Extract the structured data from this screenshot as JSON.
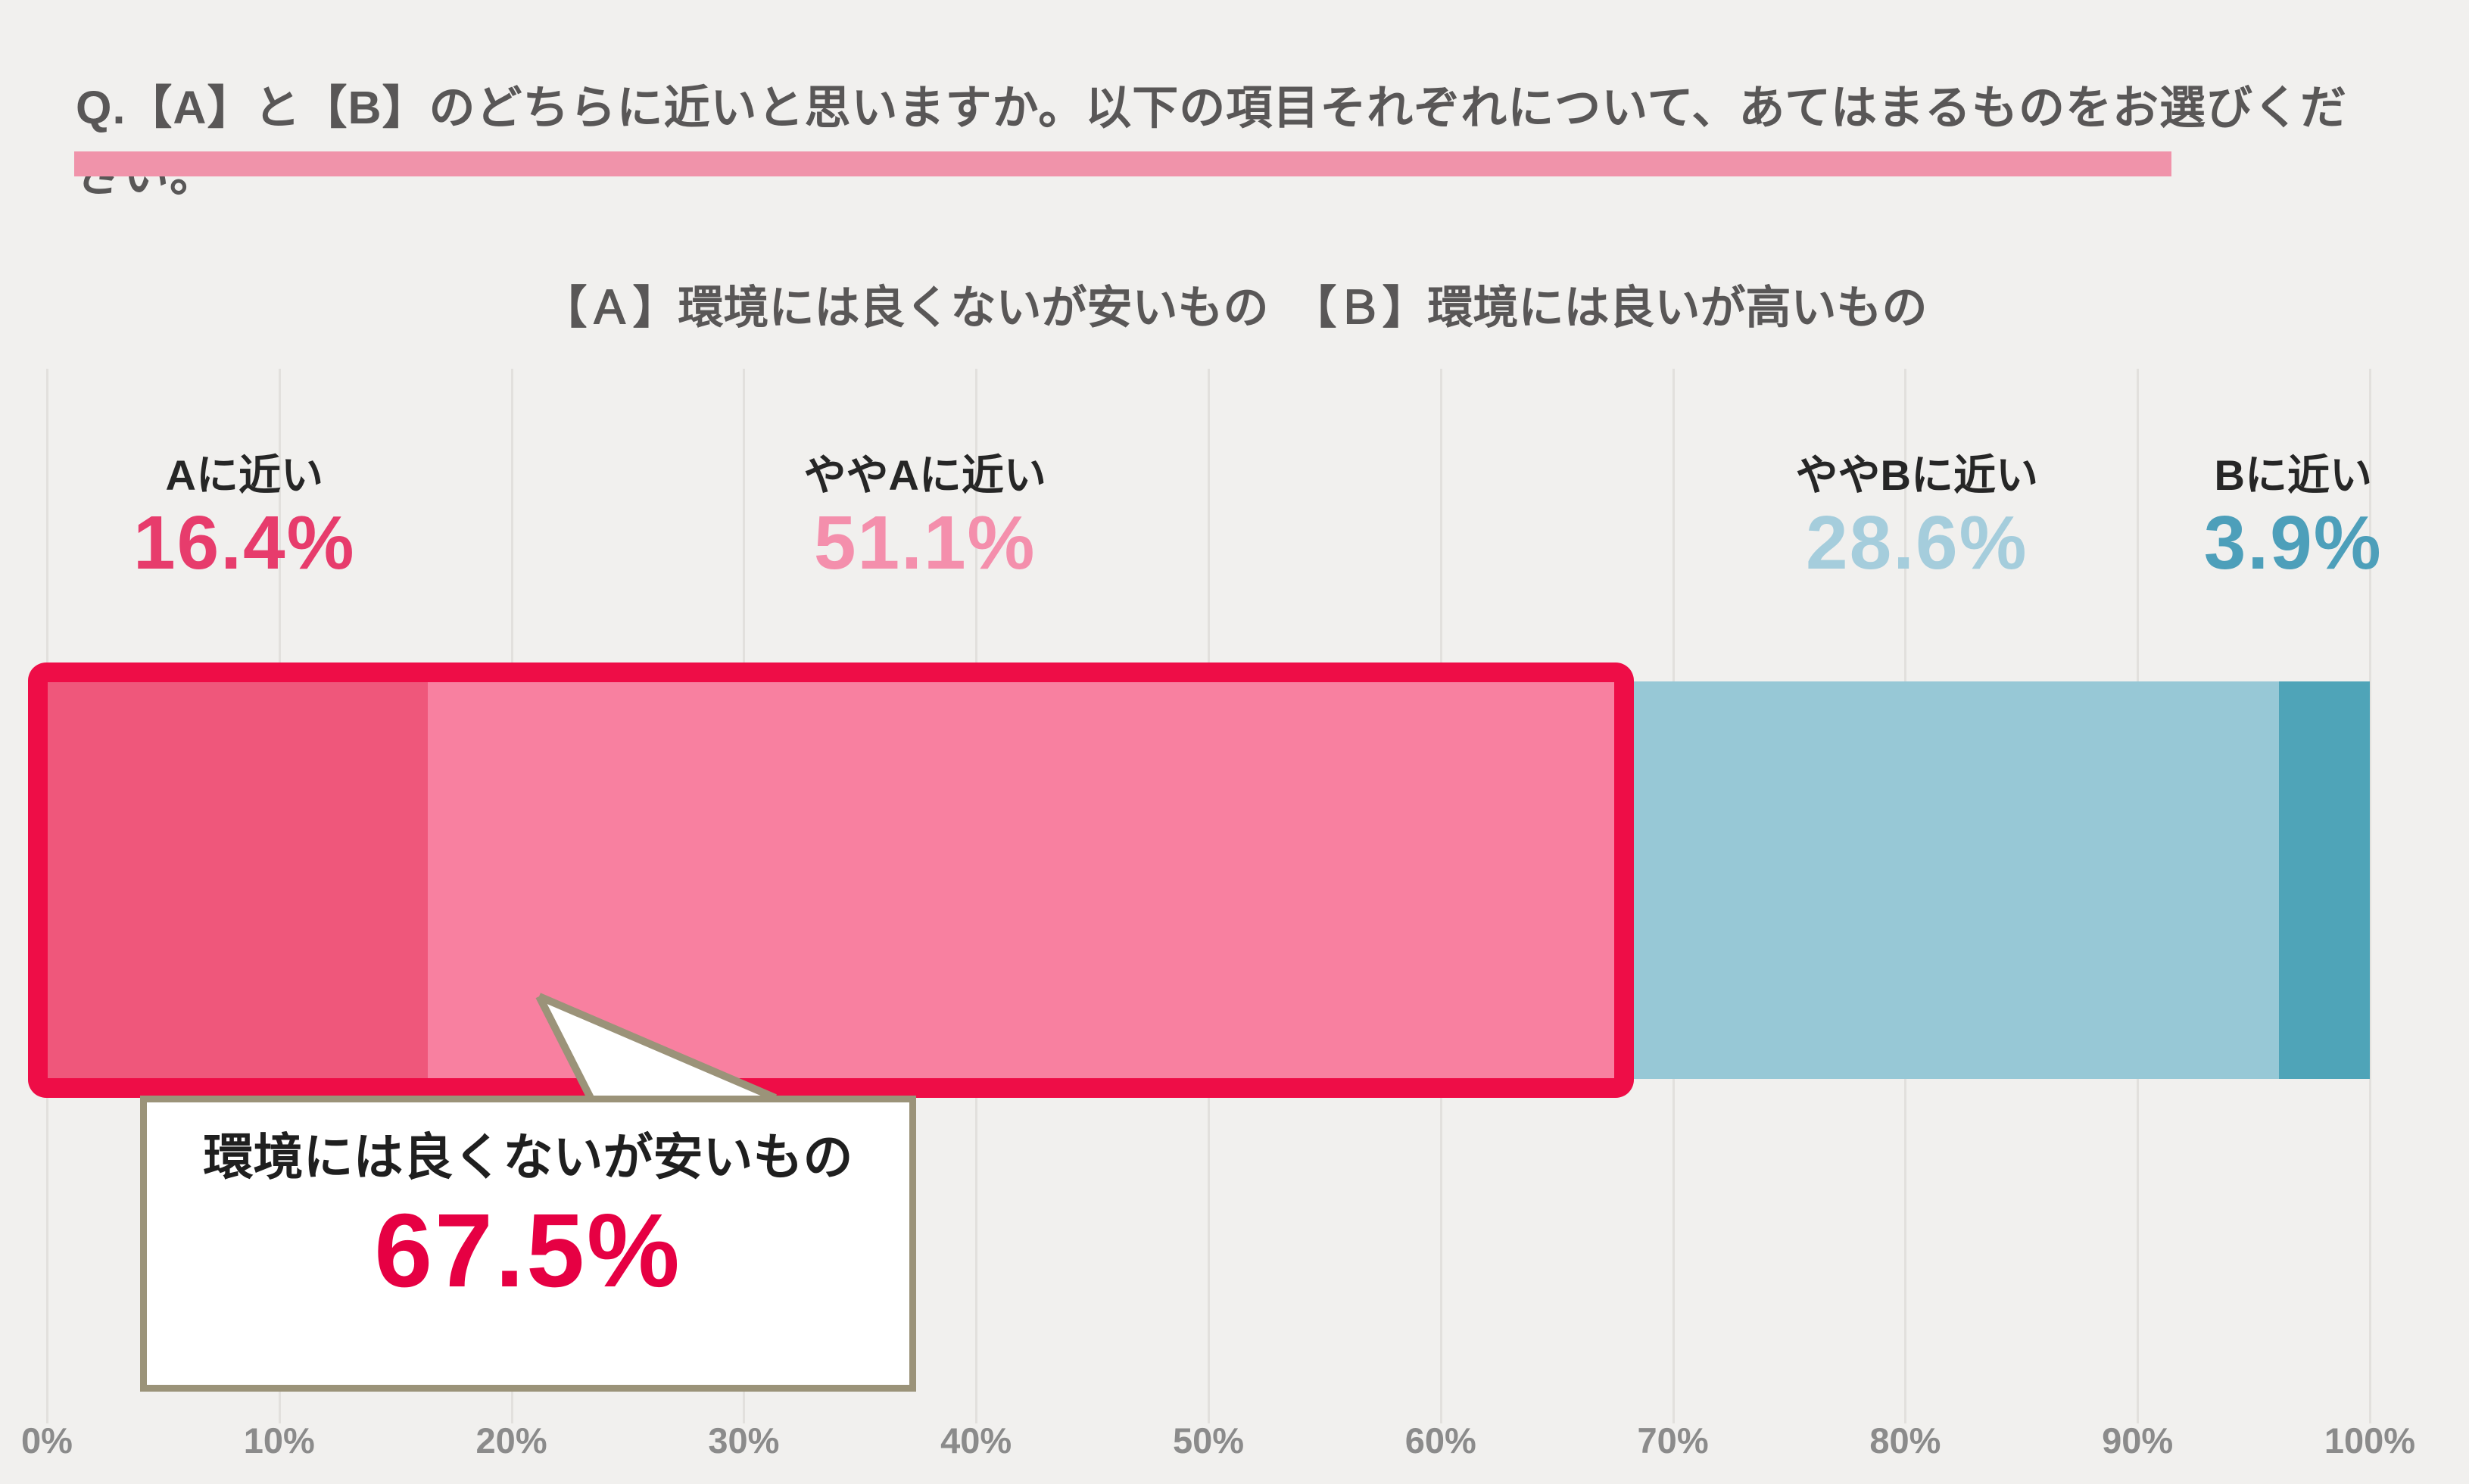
{
  "page": {
    "background": "#f1f0ee",
    "heading_color": "#595757",
    "underline_color": "#f093aa",
    "gridline_color": "#e2e0dd",
    "tick_color": "#8b8b8b"
  },
  "header": {
    "question": "Q.【A】と【B】のどちらに近いと思いますか。以下の項目それぞれについて、あてはまるものをお選びください。"
  },
  "chart_data": {
    "type": "bar",
    "orientation": "horizontal-stacked",
    "title": "【Ａ】環境には良くないが安いもの　【Ｂ】環境には良いが高いもの",
    "categories": [
      "Aに近い",
      "ややAに近い",
      "ややBに近い",
      "Bに近い"
    ],
    "values": [
      16.4,
      51.1,
      28.6,
      3.9
    ],
    "value_labels": [
      "16.4%",
      "51.1%",
      "28.6%",
      "3.9%"
    ],
    "segment_colors": [
      "#ef577b",
      "#f880a0",
      "#97c8d6",
      "#4fa4b8"
    ],
    "value_colors": [
      "#e73c6c",
      "#f48fac",
      "#a5cddc",
      "#4d9fba"
    ],
    "label_center_pct": [
      8.5,
      37.8,
      80.5,
      96.7
    ],
    "x_ticks": [
      "0%",
      "10%",
      "20%",
      "30%",
      "40%",
      "50%",
      "60%",
      "70%",
      "80%",
      "90%",
      "100%"
    ],
    "xlim": [
      0,
      100
    ],
    "grid": true,
    "legend": "none",
    "highlight": {
      "from_pct": 0,
      "to_pct": 67.5,
      "border_color": "#ee0d47",
      "callout_label": "環境には良くないが安いもの",
      "callout_value": "67.5%",
      "callout_value_color": "#e60043",
      "callout_border_color": "#9b9379"
    }
  }
}
